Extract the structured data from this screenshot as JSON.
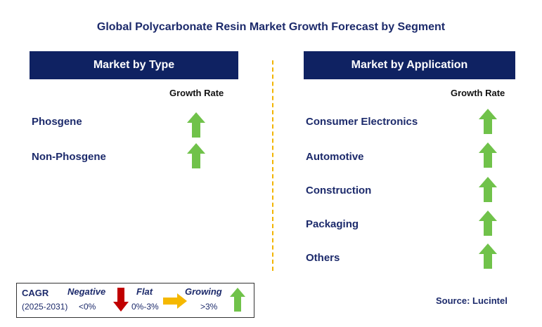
{
  "title": "Global Polycarbonate Resin Market Growth Forecast by Segment",
  "left_panel": {
    "header": "Market by Type",
    "growth_label": "Growth Rate",
    "items": [
      {
        "label": "Phosgene",
        "trend": "growing"
      },
      {
        "label": "Non-Phosgene",
        "trend": "growing"
      }
    ]
  },
  "right_panel": {
    "header": "Market by Application",
    "growth_label": "Growth Rate",
    "items": [
      {
        "label": "Consumer Electronics",
        "trend": "growing"
      },
      {
        "label": "Automotive",
        "trend": "growing"
      },
      {
        "label": "Construction",
        "trend": "growing"
      },
      {
        "label": "Packaging",
        "trend": "growing"
      },
      {
        "label": "Others",
        "trend": "growing"
      }
    ]
  },
  "legend": {
    "cagr": "CAGR",
    "period": "(2025-2031)",
    "negative_label": "Negative",
    "negative_range": "<0%",
    "flat_label": "Flat",
    "flat_range": "0%-3%",
    "growing_label": "Growing",
    "growing_range": ">3%"
  },
  "source": "Source: Lucintel",
  "colors": {
    "header_bg": "#0f2262",
    "growing": "#70c24a",
    "negative": "#c00000",
    "flat": "#f5b800",
    "divider": "#f2b400"
  }
}
